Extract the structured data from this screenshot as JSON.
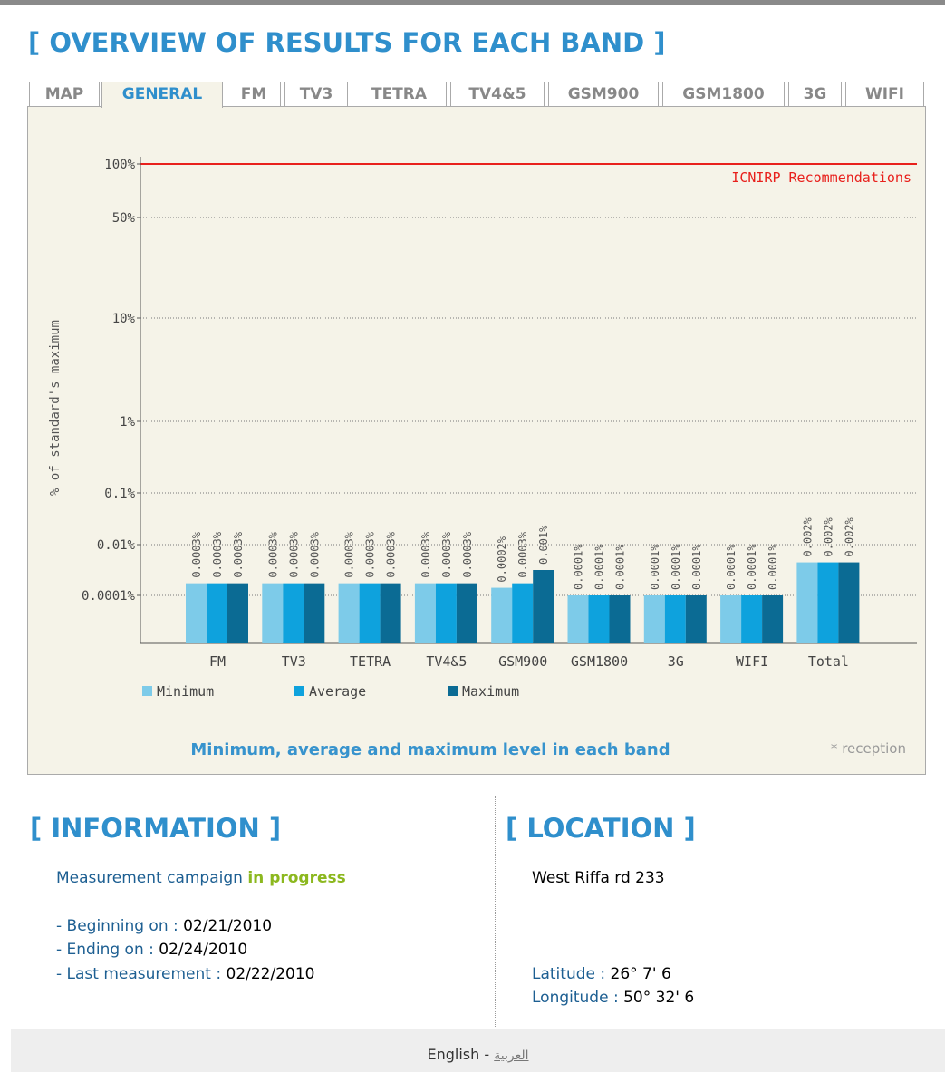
{
  "header": {
    "title": "[ OVERVIEW OF RESULTS FOR EACH BAND ]"
  },
  "tabs": [
    "MAP",
    "GENERAL",
    "FM",
    "TV3",
    "TETRA",
    "TV4&5",
    "GSM900",
    "GSM1800",
    "3G",
    "WIFI"
  ],
  "chart_data": {
    "type": "bar",
    "log_scale": true,
    "grid": true,
    "y_axis_label": "% of standard's maximum",
    "categories": [
      "FM",
      "TV3",
      "TETRA",
      "TV4&5",
      "GSM900",
      "GSM1800",
      "3G",
      "WIFI",
      "Total"
    ],
    "series": [
      {
        "name": "Minimum",
        "color": "#7dcbe9",
        "values": [
          0.0003,
          0.0003,
          0.0003,
          0.0003,
          0.0002,
          0.0001,
          0.0001,
          0.0001,
          0.002
        ],
        "value_labels": [
          "0.0003%",
          "0.0003%",
          "0.0003%",
          "0.0003%",
          "0.0002%",
          "0.0001%",
          "0.0001%",
          "0.0001%",
          "0.002%"
        ]
      },
      {
        "name": "Average",
        "color": "#0ea2dd",
        "values": [
          0.0003,
          0.0003,
          0.0003,
          0.0003,
          0.0003,
          0.0001,
          0.0001,
          0.0001,
          0.002
        ],
        "value_labels": [
          "0.0003%",
          "0.0003%",
          "0.0003%",
          "0.0003%",
          "0.0003%",
          "0.0001%",
          "0.0001%",
          "0.0001%",
          "0.002%"
        ]
      },
      {
        "name": "Maximum",
        "color": "#0b6b94",
        "values": [
          0.0003,
          0.0003,
          0.0003,
          0.0003,
          0.001,
          0.0001,
          0.0001,
          0.0001,
          0.002
        ],
        "value_labels": [
          "0.0003%",
          "0.0003%",
          "0.0003%",
          "0.0003%",
          "0.001%",
          "0.0001%",
          "0.0001%",
          "0.0001%",
          "0.002%"
        ]
      }
    ],
    "ylim": [
      1e-05,
      100
    ],
    "yticks": [
      {
        "value": 0.0001,
        "label": "0.0001%"
      },
      {
        "value": 0.01,
        "label": "0.01%"
      },
      {
        "value": 0.1,
        "label": "0.1%"
      },
      {
        "value": 1,
        "label": "1%"
      },
      {
        "value": 10,
        "label": "10%"
      },
      {
        "value": 50,
        "label": "50%"
      },
      {
        "value": 100,
        "label": "100%"
      }
    ],
    "reference_line": {
      "value": 100,
      "label": "ICNIRP Recommendations",
      "color": "#e8201c"
    },
    "caption": "Minimum, average and maximum level in each band",
    "note": "* reception"
  },
  "information": {
    "title": "[ INFORMATION ]",
    "campaign": "Measurement campaign",
    "status": "in progress",
    "beginning_label": "- Beginning on :",
    "beginning": "02/21/2010",
    "ending_label": "- Ending on :",
    "ending": "02/24/2010",
    "last_label": "- Last measurement :",
    "last": "02/22/2010"
  },
  "location": {
    "title": "[ LOCATION ]",
    "address": "West Riffa rd 233",
    "latitude_label": "Latitude :",
    "latitude": "26° 7' 6",
    "longitude_label": "Longitude :",
    "longitude": "50° 32' 6"
  },
  "footer": {
    "english": "English",
    "separator": "-",
    "arabic": "العربية"
  }
}
